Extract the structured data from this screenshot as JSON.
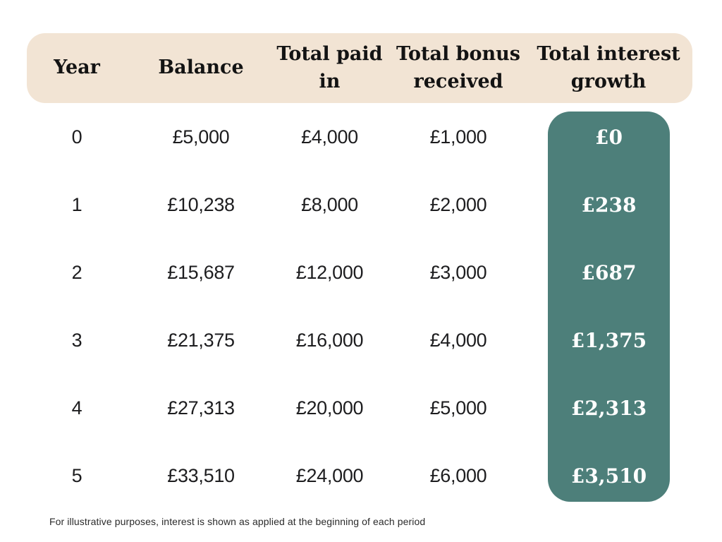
{
  "chart_data": {
    "type": "table",
    "columns": [
      "Year",
      "Balance",
      "Total paid in",
      "Total bonus received",
      "Total interest growth"
    ],
    "rows": [
      [
        "0",
        "£5,000",
        "£4,000",
        "£1,000",
        "£0"
      ],
      [
        "1",
        "£10,238",
        "£8,000",
        "£2,000",
        "£238"
      ],
      [
        "2",
        "£15,687",
        "£12,000",
        "£3,000",
        "£687"
      ],
      [
        "3",
        "£21,375",
        "£16,000",
        "£4,000",
        "£1,375"
      ],
      [
        "4",
        "£27,313",
        "£20,000",
        "£5,000",
        "£2,313"
      ],
      [
        "5",
        "£33,510",
        "£24,000",
        "£6,000",
        "£3,510"
      ]
    ],
    "footnote": "For illustrative purposes, interest is shown as applied at the beginning of each period",
    "layout": {
      "highlighted_column": "Total interest growth",
      "grid": "off"
    }
  },
  "colors": {
    "page_bg": "#ffffff",
    "header_bg": "#f2e4d4",
    "highlight_bg": "#4d7f7a",
    "header_text": "#131313",
    "cell_text": "#1d1d1f",
    "highlight_text": "#ffffff",
    "footnote_text": "#2b2b2b"
  }
}
